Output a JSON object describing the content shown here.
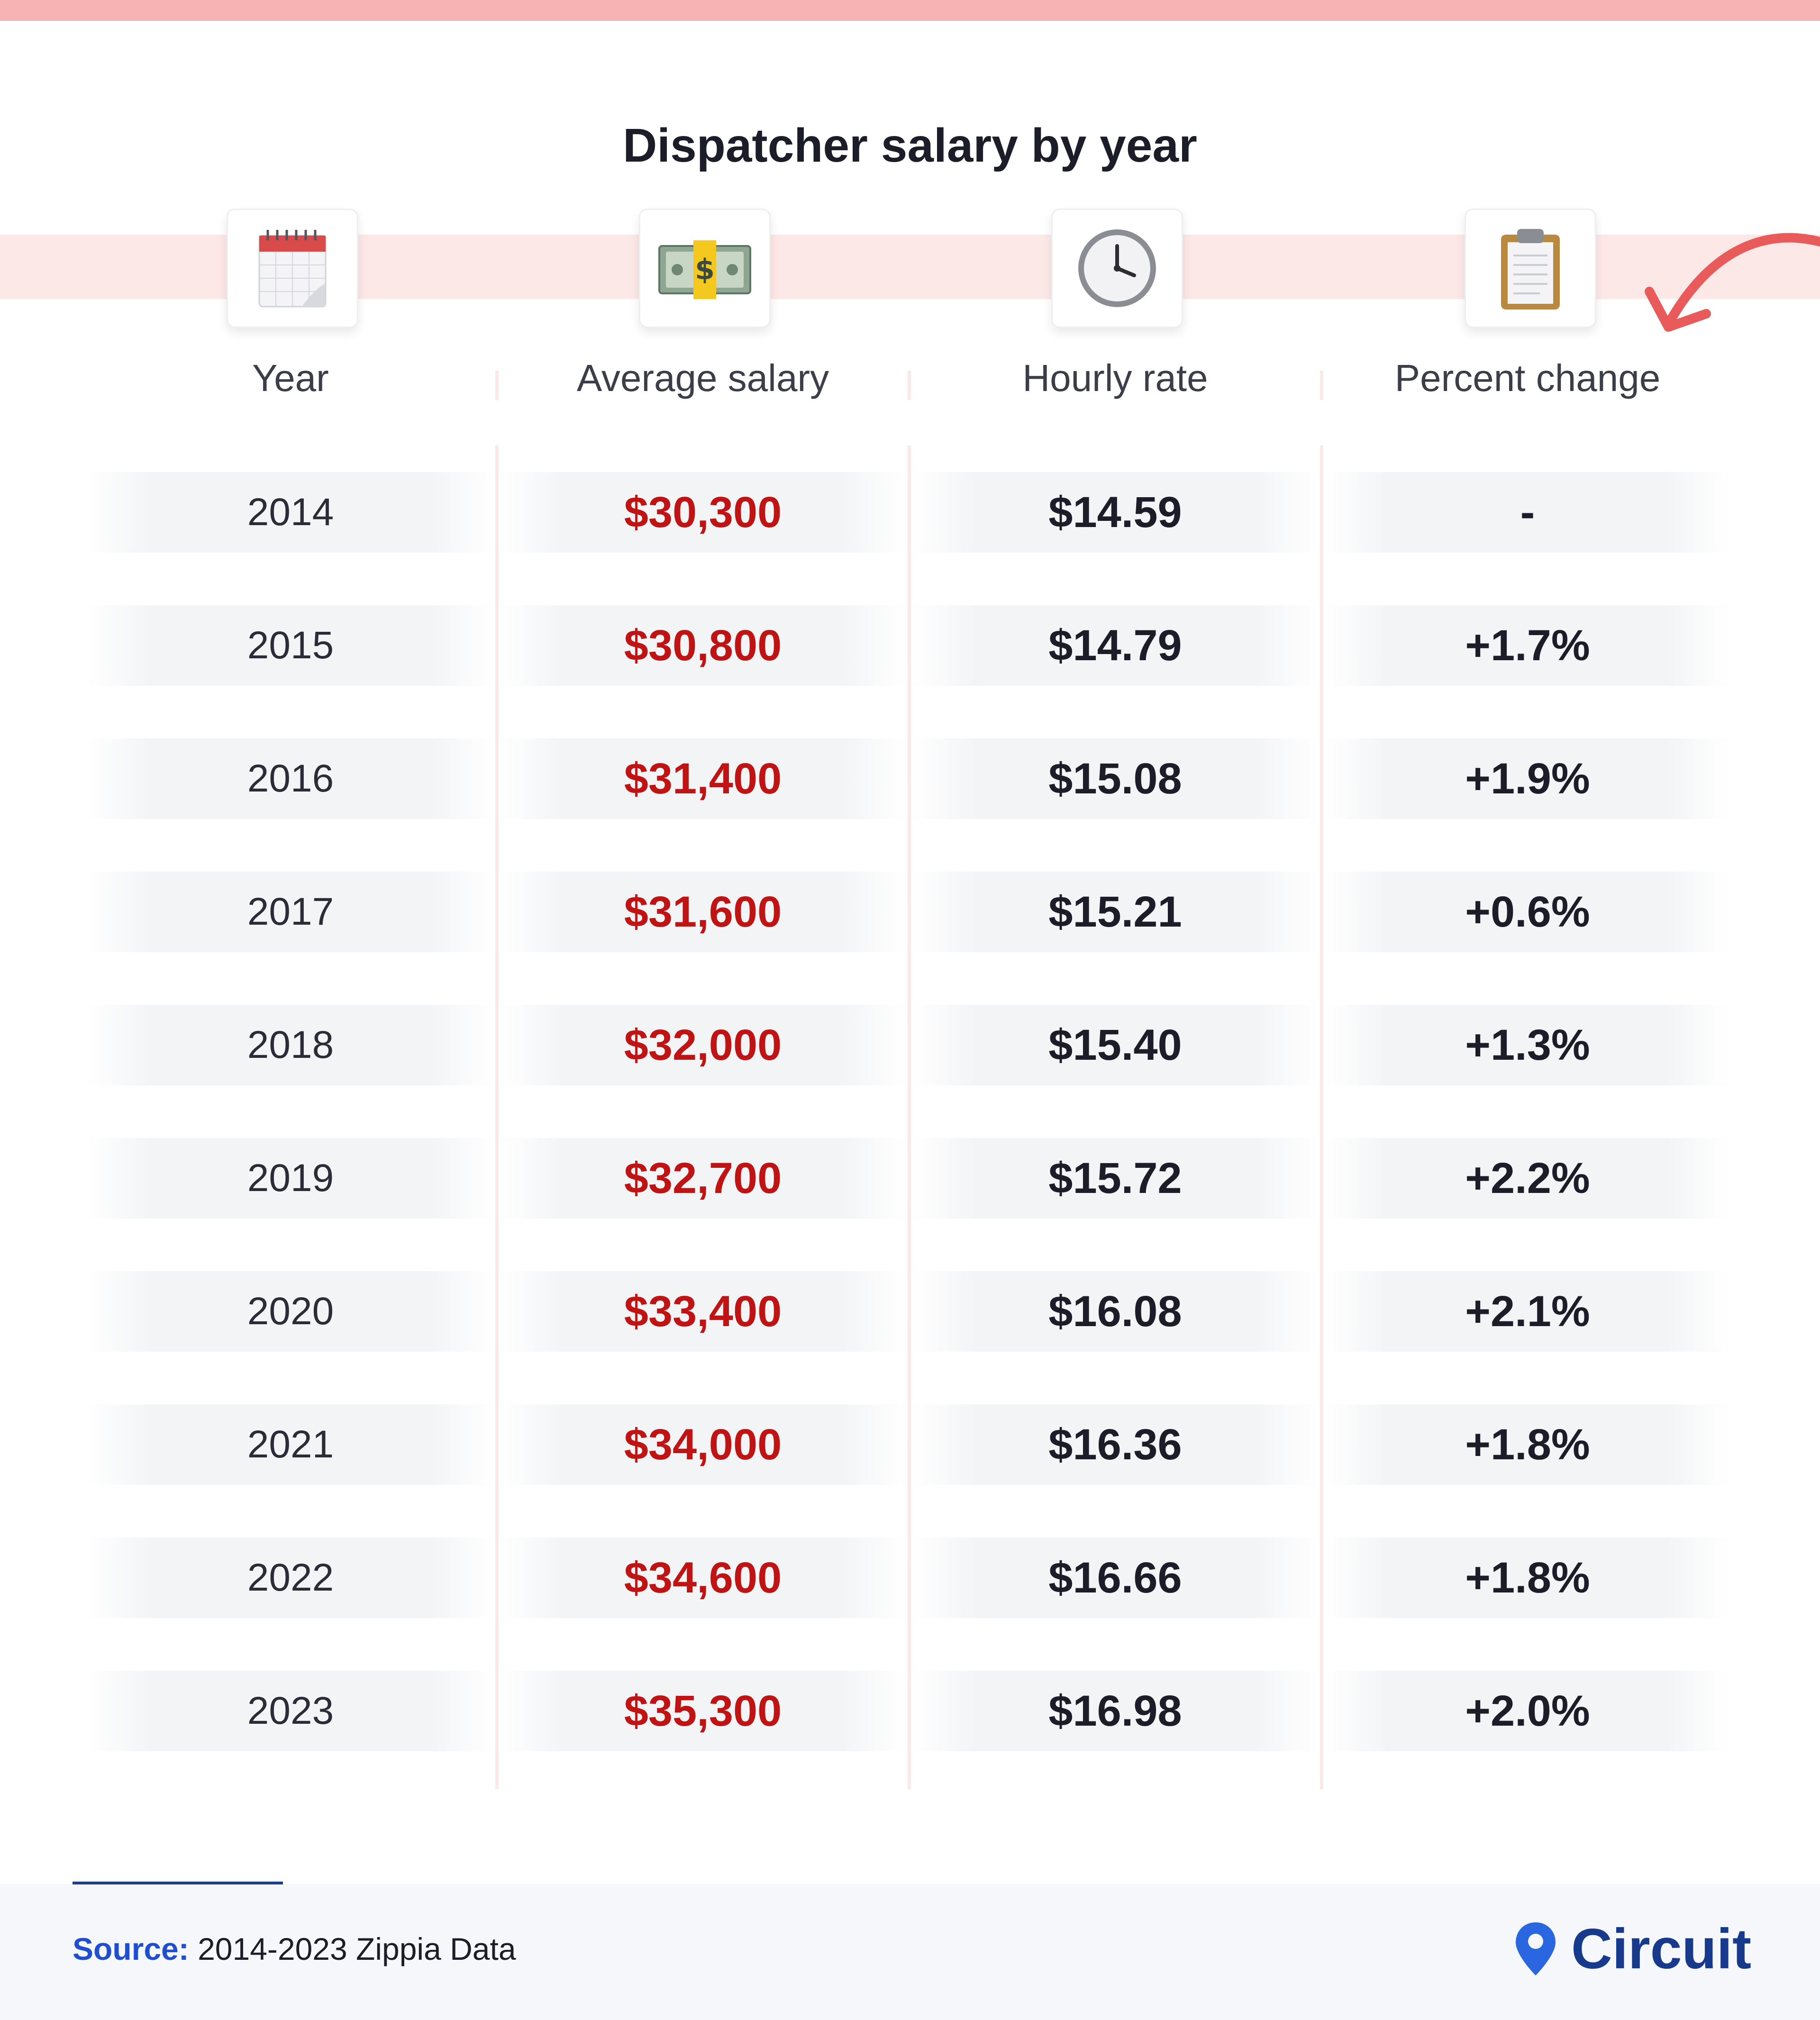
{
  "title": "Dispatcher salary by year",
  "colors": {
    "accent": "#c01414",
    "band": "#fde8e8",
    "brand": "#183a8c",
    "source_label": "#1f4fd0"
  },
  "icons": [
    "calendar-icon",
    "money-icon",
    "clock-icon",
    "clipboard-icon"
  ],
  "chart_data": {
    "type": "table",
    "title": "Dispatcher salary by year",
    "columns": [
      "Year",
      "Average salary",
      "Hourly rate",
      "Percent change"
    ],
    "rows": [
      {
        "year": "2014",
        "salary": "$30,300",
        "hourly": "$14.59",
        "change": "-"
      },
      {
        "year": "2015",
        "salary": "$30,800",
        "hourly": "$14.79",
        "change": "+1.7%"
      },
      {
        "year": "2016",
        "salary": "$31,400",
        "hourly": "$15.08",
        "change": "+1.9%"
      },
      {
        "year": "2017",
        "salary": "$31,600",
        "hourly": "$15.21",
        "change": "+0.6%"
      },
      {
        "year": "2018",
        "salary": "$32,000",
        "hourly": "$15.40",
        "change": "+1.3%"
      },
      {
        "year": "2019",
        "salary": "$32,700",
        "hourly": "$15.72",
        "change": "+2.2%"
      },
      {
        "year": "2020",
        "salary": "$33,400",
        "hourly": "$16.08",
        "change": "+2.1%"
      },
      {
        "year": "2021",
        "salary": "$34,000",
        "hourly": "$16.36",
        "change": "+1.8%"
      },
      {
        "year": "2022",
        "salary": "$34,600",
        "hourly": "$16.66",
        "change": "+1.8%"
      },
      {
        "year": "2023",
        "salary": "$35,300",
        "hourly": "$16.98",
        "change": "+2.0%"
      }
    ]
  },
  "footer": {
    "source_label": "Source:",
    "source_text": "2014-2023 Zippia Data",
    "brand": "Circuit"
  }
}
